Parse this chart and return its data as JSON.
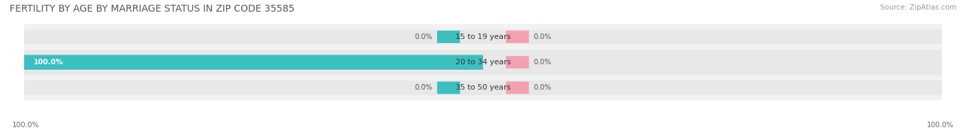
{
  "title": "FERTILITY BY AGE BY MARRIAGE STATUS IN ZIP CODE 35585",
  "source": "Source: ZipAtlas.com",
  "rows": [
    {
      "label": "15 to 19 years",
      "married": 0.0,
      "unmarried": 0.0
    },
    {
      "label": "20 to 34 years",
      "married": 100.0,
      "unmarried": 0.0
    },
    {
      "label": "35 to 50 years",
      "married": 0.0,
      "unmarried": 0.0
    }
  ],
  "married_color": "#3bbfbf",
  "unmarried_color": "#f4a0b0",
  "bar_bg_color": "#e8e8e8",
  "row_bg_even": "#f2f2f2",
  "row_bg_odd": "#e8e8e8",
  "bar_height": 0.58,
  "xlim": [
    -100,
    100
  ],
  "legend_left_label": "100.0%",
  "legend_right_label": "100.0%",
  "title_fontsize": 10,
  "source_fontsize": 7.5,
  "label_fontsize": 8,
  "value_fontsize": 7.5,
  "tick_fontsize": 7.5
}
